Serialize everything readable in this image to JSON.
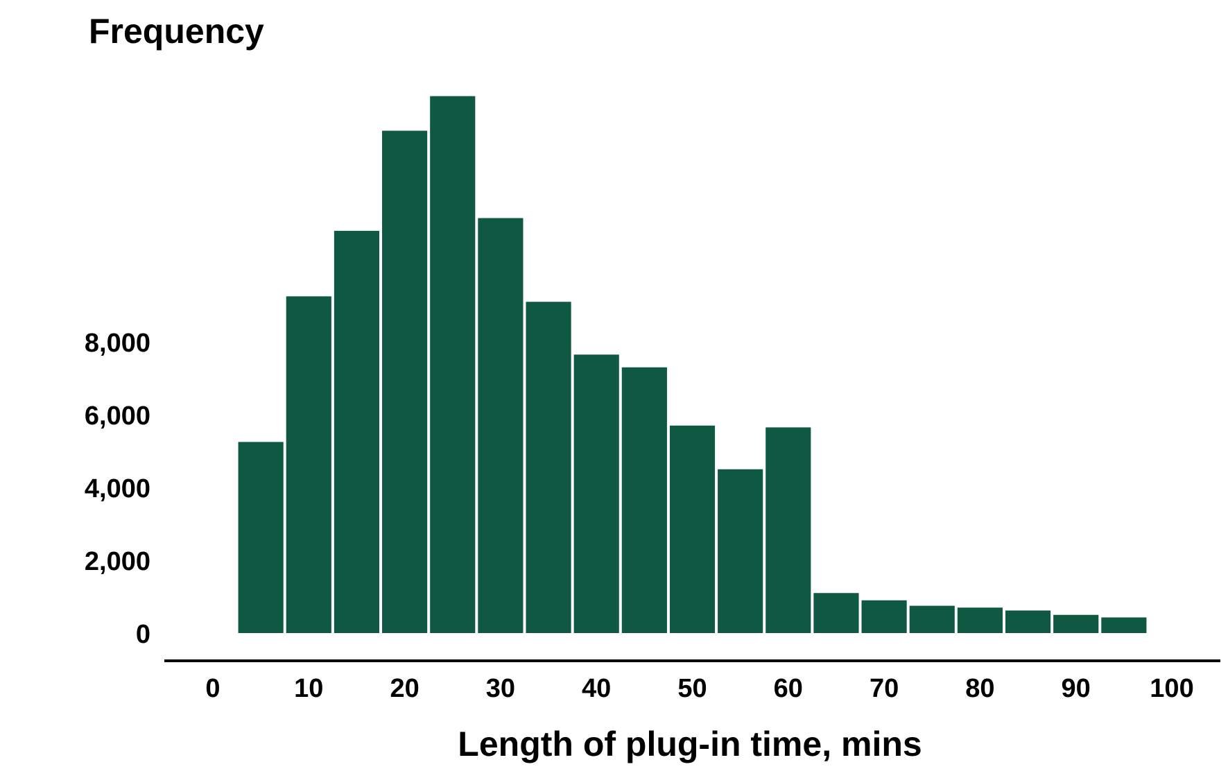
{
  "colors": {
    "bar": "#0f5842",
    "axis": "#000000",
    "background": "#ffffff"
  },
  "chart_data": {
    "type": "bar",
    "title": "",
    "ylabel": "Frequency",
    "xlabel": "Length of plug-in time, mins",
    "x_ticks": [
      0,
      10,
      20,
      30,
      40,
      50,
      60,
      70,
      80,
      90,
      100
    ],
    "y_ticks": [
      0,
      2000,
      4000,
      6000,
      8000
    ],
    "y_tick_labels": [
      "0",
      "2,000",
      "4,000",
      "6,000",
      "8,000"
    ],
    "xlim": [
      0,
      100
    ],
    "ylim": [
      0,
      15000
    ],
    "bin_width": 5,
    "bins": [
      {
        "x0": 2.5,
        "x1": 7.5,
        "value": 5250
      },
      {
        "x0": 7.5,
        "x1": 12.5,
        "value": 9250
      },
      {
        "x0": 12.5,
        "x1": 17.5,
        "value": 11050
      },
      {
        "x0": 17.5,
        "x1": 22.5,
        "value": 13800
      },
      {
        "x0": 22.5,
        "x1": 27.5,
        "value": 14750
      },
      {
        "x0": 27.5,
        "x1": 32.5,
        "value": 11400
      },
      {
        "x0": 32.5,
        "x1": 37.5,
        "value": 9100
      },
      {
        "x0": 37.5,
        "x1": 42.5,
        "value": 7650
      },
      {
        "x0": 42.5,
        "x1": 47.5,
        "value": 7300
      },
      {
        "x0": 47.5,
        "x1": 52.5,
        "value": 5700
      },
      {
        "x0": 52.5,
        "x1": 57.5,
        "value": 4500
      },
      {
        "x0": 57.5,
        "x1": 62.5,
        "value": 5650
      },
      {
        "x0": 62.5,
        "x1": 67.5,
        "value": 1100
      },
      {
        "x0": 67.5,
        "x1": 72.5,
        "value": 900
      },
      {
        "x0": 72.5,
        "x1": 77.5,
        "value": 750
      },
      {
        "x0": 77.5,
        "x1": 82.5,
        "value": 700
      },
      {
        "x0": 82.5,
        "x1": 87.5,
        "value": 620
      },
      {
        "x0": 87.5,
        "x1": 92.5,
        "value": 500
      },
      {
        "x0": 92.5,
        "x1": 97.5,
        "value": 430
      }
    ],
    "grid": false,
    "legend": "none"
  }
}
